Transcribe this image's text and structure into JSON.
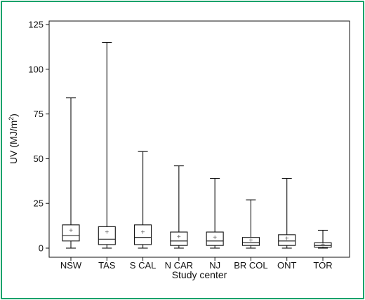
{
  "chart_data": {
    "type": "boxplot",
    "xlabel": "Study center",
    "ylabel": "UV (MJ/m²)",
    "ylabel_parts": {
      "main": "UV (MJ/m",
      "sup": "2",
      "close": ")"
    },
    "ylim": [
      0,
      125
    ],
    "yticks": [
      0,
      25,
      50,
      75,
      100,
      125
    ],
    "grid": false,
    "mean_marker": "+",
    "categories": [
      "NSW",
      "TAS",
      "S CAL",
      "N CAR",
      "NJ",
      "BR COL",
      "ONT",
      "TOR"
    ],
    "boxes": [
      {
        "name": "NSW",
        "min": 0,
        "q1": 4,
        "median": 7,
        "q3": 13,
        "max": 84,
        "mean": 10
      },
      {
        "name": "TAS",
        "min": 0,
        "q1": 2,
        "median": 5,
        "q3": 12,
        "max": 115,
        "mean": 9
      },
      {
        "name": "S CAL",
        "min": 0,
        "q1": 2,
        "median": 6,
        "q3": 13,
        "max": 54,
        "mean": 9
      },
      {
        "name": "N CAR",
        "min": 0,
        "q1": 1.5,
        "median": 4,
        "q3": 9,
        "max": 46,
        "mean": 6.5
      },
      {
        "name": "NJ",
        "min": 0,
        "q1": 1.5,
        "median": 4,
        "q3": 9,
        "max": 39,
        "mean": 6
      },
      {
        "name": "BR COL",
        "min": 0,
        "q1": 1.5,
        "median": 3,
        "q3": 6,
        "max": 27,
        "mean": 4.5
      },
      {
        "name": "ONT",
        "min": 0,
        "q1": 1.5,
        "median": 4,
        "q3": 7.5,
        "max": 39,
        "mean": 5.5
      },
      {
        "name": "TOR",
        "min": 0,
        "q1": 0.5,
        "median": 1.5,
        "q3": 3,
        "max": 10,
        "mean": 2
      }
    ],
    "colors": {
      "frame": "#1aa36b",
      "ink": "#111111",
      "mean_marker": "#666666"
    }
  }
}
